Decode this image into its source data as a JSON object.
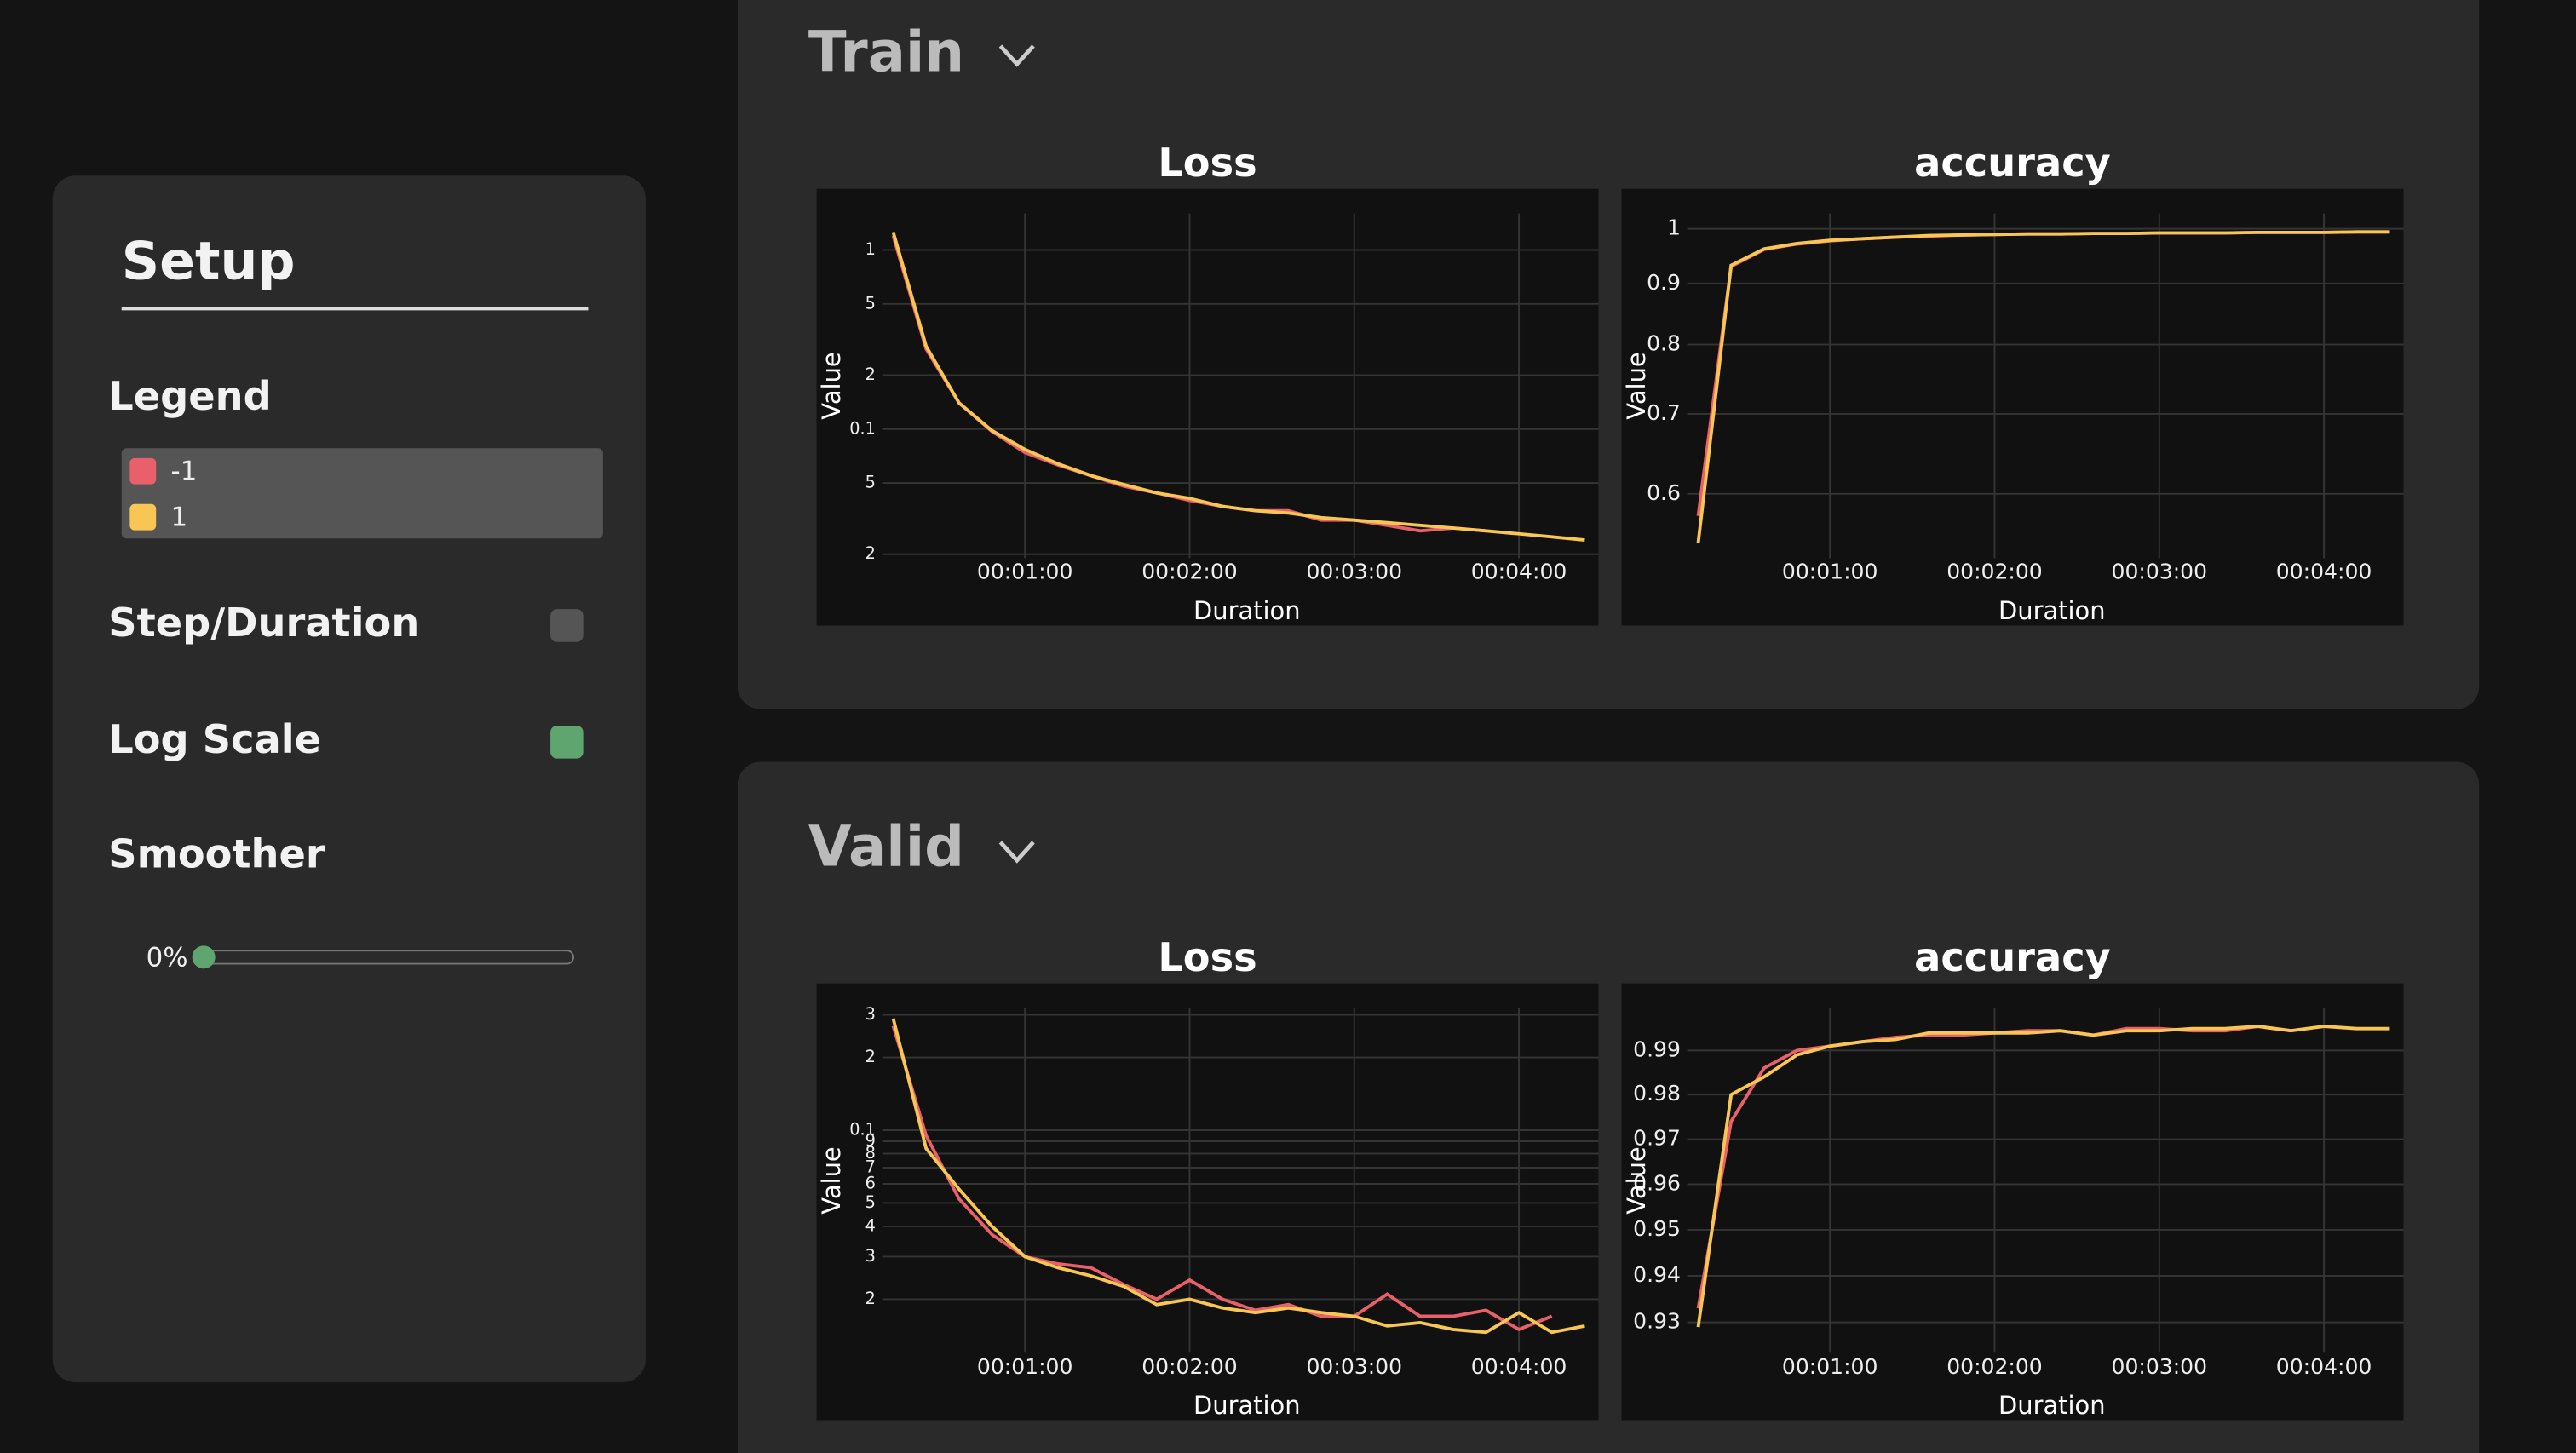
{
  "sidebar": {
    "title": "Setup",
    "legend_title": "Legend",
    "toggles": [
      {
        "label": "Step/Duration",
        "on": false
      },
      {
        "label": "Log Scale",
        "on": true
      }
    ],
    "smoother_title": "Smoother",
    "smoother_value": "0%",
    "on_color": "#5fa56f",
    "off_color": "#555555"
  },
  "sections": [
    "Train",
    "Valid"
  ],
  "chart_data": [
    {
      "type": "line",
      "title": "Loss",
      "x_label": "Duration",
      "y_label": "Value",
      "log": true,
      "grid": true,
      "x": [
        12,
        24,
        36,
        48,
        60,
        72,
        84,
        96,
        108,
        120,
        132,
        144,
        156,
        168,
        180,
        192,
        204,
        216,
        228,
        240,
        252,
        264
      ],
      "xlim": [
        8,
        269
      ],
      "xticks": [
        {
          "value": 60,
          "label": "00:01:00"
        },
        {
          "value": 120,
          "label": "00:02:00"
        },
        {
          "value": 180,
          "label": "00:03:00"
        },
        {
          "value": 240,
          "label": "00:04:00"
        }
      ],
      "ylim": [
        0.019,
        1.6
      ],
      "yticks": [
        1,
        {
          "value": 0.5,
          "label": "5"
        },
        {
          "value": 0.2,
          "label": "2"
        },
        0.1,
        {
          "value": 0.05,
          "label": "5"
        },
        {
          "value": 0.02,
          "label": "2"
        }
      ],
      "series": [
        {
          "name": "-1",
          "color": "#e8606a",
          "values": [
            1.2,
            0.28,
            0.14,
            0.097,
            0.074,
            0.063,
            0.055,
            0.048,
            0.044,
            0.04,
            0.037,
            0.035,
            0.035,
            0.031,
            0.031,
            0.029,
            0.027,
            0.028,
            0.027,
            null,
            null,
            null
          ]
        },
        {
          "name": "1",
          "color": "#f7c653",
          "values": [
            1.26,
            0.29,
            0.14,
            0.098,
            0.077,
            0.064,
            0.055,
            0.049,
            0.044,
            0.041,
            0.037,
            0.035,
            0.034,
            0.032,
            0.031,
            0.03,
            0.029,
            0.028,
            0.027,
            0.026,
            0.025,
            0.024
          ]
        }
      ]
    },
    {
      "type": "line",
      "title": "accuracy",
      "x_label": "Duration",
      "y_label": "Value",
      "log": true,
      "grid": true,
      "x": [
        12,
        24,
        36,
        48,
        60,
        72,
        84,
        96,
        108,
        120,
        132,
        144,
        156,
        168,
        180,
        192,
        204,
        216,
        228,
        240,
        252,
        264
      ],
      "xlim": [
        8,
        269
      ],
      "xticks": [
        {
          "value": 60,
          "label": "00:01:00"
        },
        {
          "value": 120,
          "label": "00:02:00"
        },
        {
          "value": 180,
          "label": "00:03:00"
        },
        {
          "value": 240,
          "label": "00:04:00"
        }
      ],
      "ylim": [
        0.53,
        1.03
      ],
      "yticks": [
        0.6,
        0.7,
        0.8,
        0.9,
        1
      ],
      "series": [
        {
          "name": "-1",
          "color": "#e8606a",
          "values": [
            0.575,
            0.93,
            0.961,
            0.971,
            0.977,
            0.981,
            0.984,
            0.986,
            0.988,
            0.989,
            0.99,
            0.99,
            0.991,
            0.991,
            0.992,
            0.992,
            0.992,
            0.993,
            0.993,
            0.993,
            0.994,
            0.994
          ]
        },
        {
          "name": "1",
          "color": "#f7c653",
          "values": [
            0.546,
            0.932,
            0.962,
            0.972,
            0.978,
            0.981,
            0.984,
            0.987,
            0.988,
            0.989,
            0.99,
            0.99,
            0.991,
            0.991,
            0.992,
            0.992,
            0.992,
            0.993,
            0.993,
            0.993,
            0.994,
            0.994
          ]
        }
      ]
    },
    {
      "type": "line",
      "title": "Loss",
      "x_label": "Duration",
      "y_label": "Value",
      "log": true,
      "grid": true,
      "x": [
        12,
        24,
        36,
        48,
        60,
        72,
        84,
        96,
        108,
        120,
        132,
        144,
        156,
        168,
        180,
        192,
        204,
        216,
        228,
        240,
        252,
        264
      ],
      "xlim": [
        8,
        269
      ],
      "xticks": [
        {
          "value": 60,
          "label": "00:01:00"
        },
        {
          "value": 120,
          "label": "00:02:00"
        },
        {
          "value": 180,
          "label": "00:03:00"
        },
        {
          "value": 240,
          "label": "00:04:00"
        }
      ],
      "ylim": [
        0.012,
        0.32
      ],
      "yticks": [
        {
          "value": 0.3,
          "label": "3"
        },
        {
          "value": 0.2,
          "label": "2"
        },
        0.1,
        {
          "value": 0.09,
          "label": "9"
        },
        {
          "value": 0.08,
          "label": "8"
        },
        {
          "value": 0.07,
          "label": "7"
        },
        {
          "value": 0.06,
          "label": "6"
        },
        {
          "value": 0.05,
          "label": "5"
        },
        {
          "value": 0.04,
          "label": "4"
        },
        {
          "value": 0.03,
          "label": "3"
        },
        {
          "value": 0.02,
          "label": "2"
        }
      ],
      "series": [
        {
          "name": "-1",
          "color": "#e8606a",
          "values": [
            0.27,
            0.095,
            0.052,
            0.037,
            0.03,
            0.028,
            0.027,
            0.023,
            0.02,
            0.024,
            0.02,
            0.018,
            0.019,
            0.017,
            0.017,
            0.021,
            0.017,
            0.017,
            0.018,
            0.015,
            0.017,
            null
          ]
        },
        {
          "name": "1",
          "color": "#f7c653",
          "values": [
            0.29,
            0.084,
            0.057,
            0.04,
            0.03,
            0.027,
            0.025,
            0.0226,
            0.019,
            0.02,
            0.0184,
            0.0176,
            0.0184,
            0.0176,
            0.017,
            0.0155,
            0.016,
            0.015,
            0.0146,
            0.0176,
            0.0146,
            0.0155
          ]
        }
      ]
    },
    {
      "type": "line",
      "title": "accuracy",
      "x_label": "Duration",
      "y_label": "Value",
      "log": true,
      "grid": true,
      "x": [
        12,
        24,
        36,
        48,
        60,
        72,
        84,
        96,
        108,
        120,
        132,
        144,
        156,
        168,
        180,
        192,
        204,
        216,
        228,
        240,
        252,
        264
      ],
      "xlim": [
        8,
        269
      ],
      "xticks": [
        {
          "value": 60,
          "label": "00:01:00"
        },
        {
          "value": 120,
          "label": "00:02:00"
        },
        {
          "value": 180,
          "label": "00:03:00"
        },
        {
          "value": 240,
          "label": "00:04:00"
        }
      ],
      "ylim": [
        0.9235,
        0.9997
      ],
      "yticks": [
        0.93,
        0.94,
        0.95,
        0.96,
        0.97,
        0.98,
        0.99
      ],
      "series": [
        {
          "name": "-1",
          "color": "#e8606a",
          "values": [
            0.933,
            0.974,
            0.986,
            0.99,
            0.991,
            0.992,
            0.993,
            0.9935,
            0.9935,
            0.994,
            0.9945,
            0.9945,
            0.9935,
            0.995,
            0.995,
            0.9945,
            0.9945,
            0.9955,
            0.9945,
            null,
            null,
            null
          ]
        },
        {
          "name": "1",
          "color": "#f7c653",
          "values": [
            0.929,
            0.98,
            0.984,
            0.989,
            0.991,
            0.992,
            0.9925,
            0.994,
            0.994,
            0.994,
            0.994,
            0.9945,
            0.9935,
            0.9945,
            0.9945,
            0.995,
            0.995,
            0.9955,
            0.9945,
            0.9955,
            0.995,
            0.995
          ]
        }
      ]
    }
  ]
}
